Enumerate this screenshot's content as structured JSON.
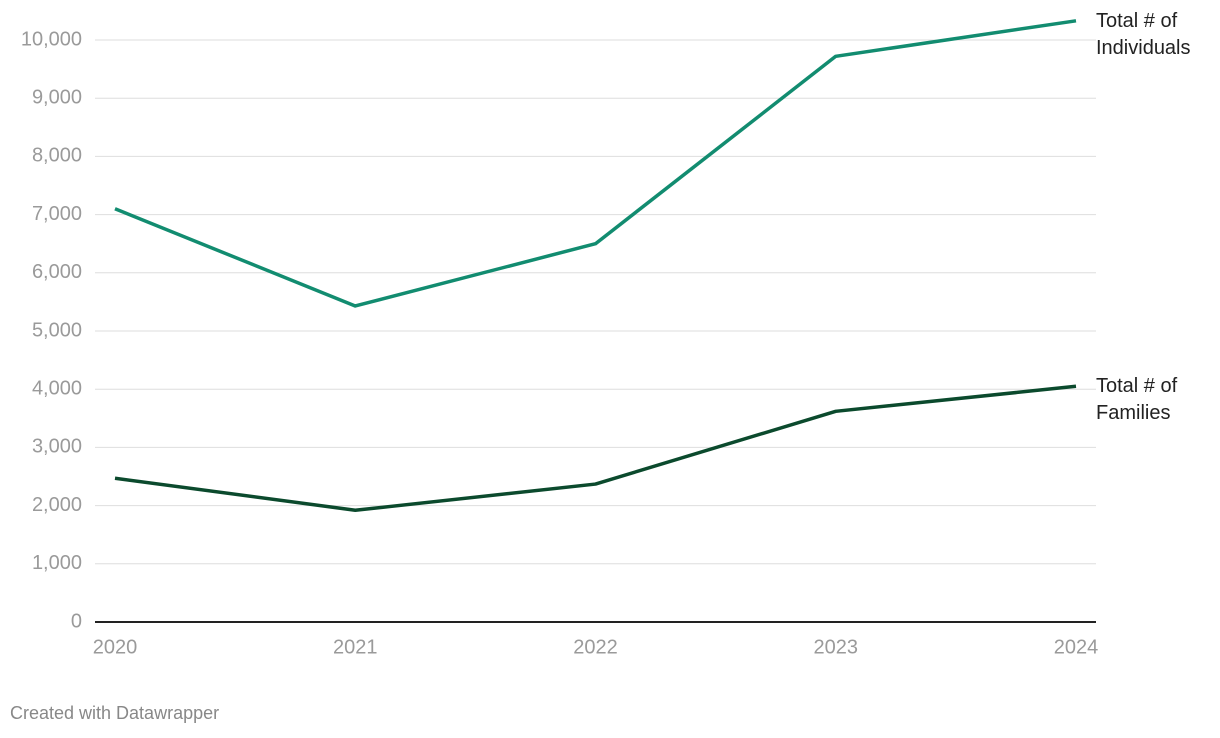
{
  "chart_data": {
    "type": "line",
    "x": [
      2020,
      2021,
      2022,
      2023,
      2024
    ],
    "xlim": [
      2020,
      2024
    ],
    "xticks": [
      2020,
      2021,
      2022,
      2023,
      2024
    ],
    "ylim": [
      0,
      10000
    ],
    "yticks": [
      0,
      {
        "value": 1000,
        "label": "1,000"
      },
      {
        "value": 2000,
        "label": "2,000"
      },
      {
        "value": 3000,
        "label": "3,000"
      },
      {
        "value": 4000,
        "label": "4,000"
      },
      {
        "value": 5000,
        "label": "5,000"
      },
      {
        "value": 6000,
        "label": "6,000"
      },
      {
        "value": 7000,
        "label": "7,000"
      },
      {
        "value": 8000,
        "label": "8,000"
      },
      {
        "value": 9000,
        "label": "9,000"
      },
      {
        "value": 10000,
        "label": "10,000"
      }
    ],
    "grid": true,
    "series": [
      {
        "name": "Total # of Individuals",
        "color": "#128c70",
        "values": [
          7100,
          5430,
          6500,
          9720,
          10330
        ]
      },
      {
        "name": "Total # of Families",
        "color": "#0b4a2d",
        "values": [
          2470,
          1920,
          2370,
          3620,
          4050
        ]
      }
    ],
    "credit": "Created with Datawrapper"
  }
}
